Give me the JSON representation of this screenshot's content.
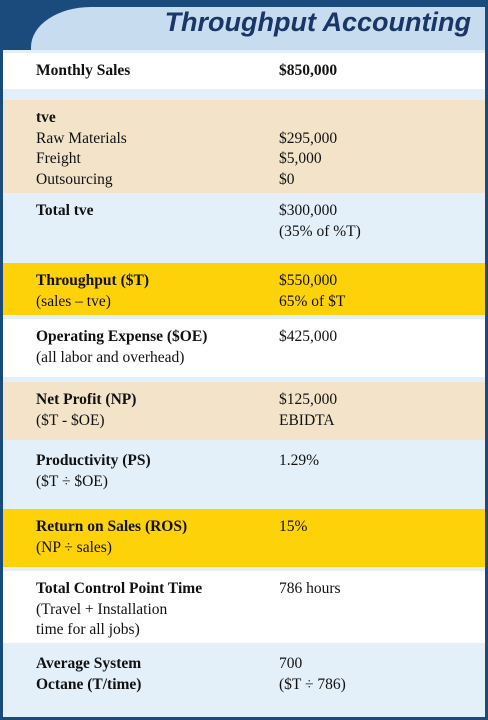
{
  "header": {
    "title": "Throughput Accounting"
  },
  "table": {
    "rows": [
      {
        "label": [
          "Monthly Sales"
        ],
        "value": [
          "$850,000"
        ]
      },
      {
        "label": [
          "tve",
          "Raw Materials",
          "Freight",
          "Outsourcing"
        ],
        "value": [
          "$295,000",
          "$5,000",
          "$0"
        ]
      },
      {
        "label": [
          "Total tve"
        ],
        "value": [
          "$300,000",
          "(35% of %T)"
        ]
      },
      {
        "label": [
          "Throughput ($T)",
          "(sales – tve)"
        ],
        "value": [
          "$550,000",
          "65% of $T"
        ]
      },
      {
        "label": [
          "Operating Expense ($OE)",
          "(all labor and overhead)"
        ],
        "value": [
          "$425,000"
        ]
      },
      {
        "label": [
          "Net Profit (NP)",
          "($T - $OE)"
        ],
        "value": [
          "$125,000",
          "EBIDTA"
        ]
      },
      {
        "label": [
          "Productivity (PS)",
          "($T ÷ $OE)"
        ],
        "value": [
          "1.29%"
        ]
      },
      {
        "label": [
          "Return on Sales (ROS)",
          "(NP ÷ sales)"
        ],
        "value": [
          "15%"
        ]
      },
      {
        "label": [
          "Total Control Point Time",
          "(Travel + Installation",
          "time for all jobs)"
        ],
        "value": [
          "786 hours"
        ]
      },
      {
        "label": [
          "Average System",
          "Octane (T/time)"
        ],
        "value": [
          "700",
          "($T ÷ 786)"
        ]
      }
    ]
  }
}
